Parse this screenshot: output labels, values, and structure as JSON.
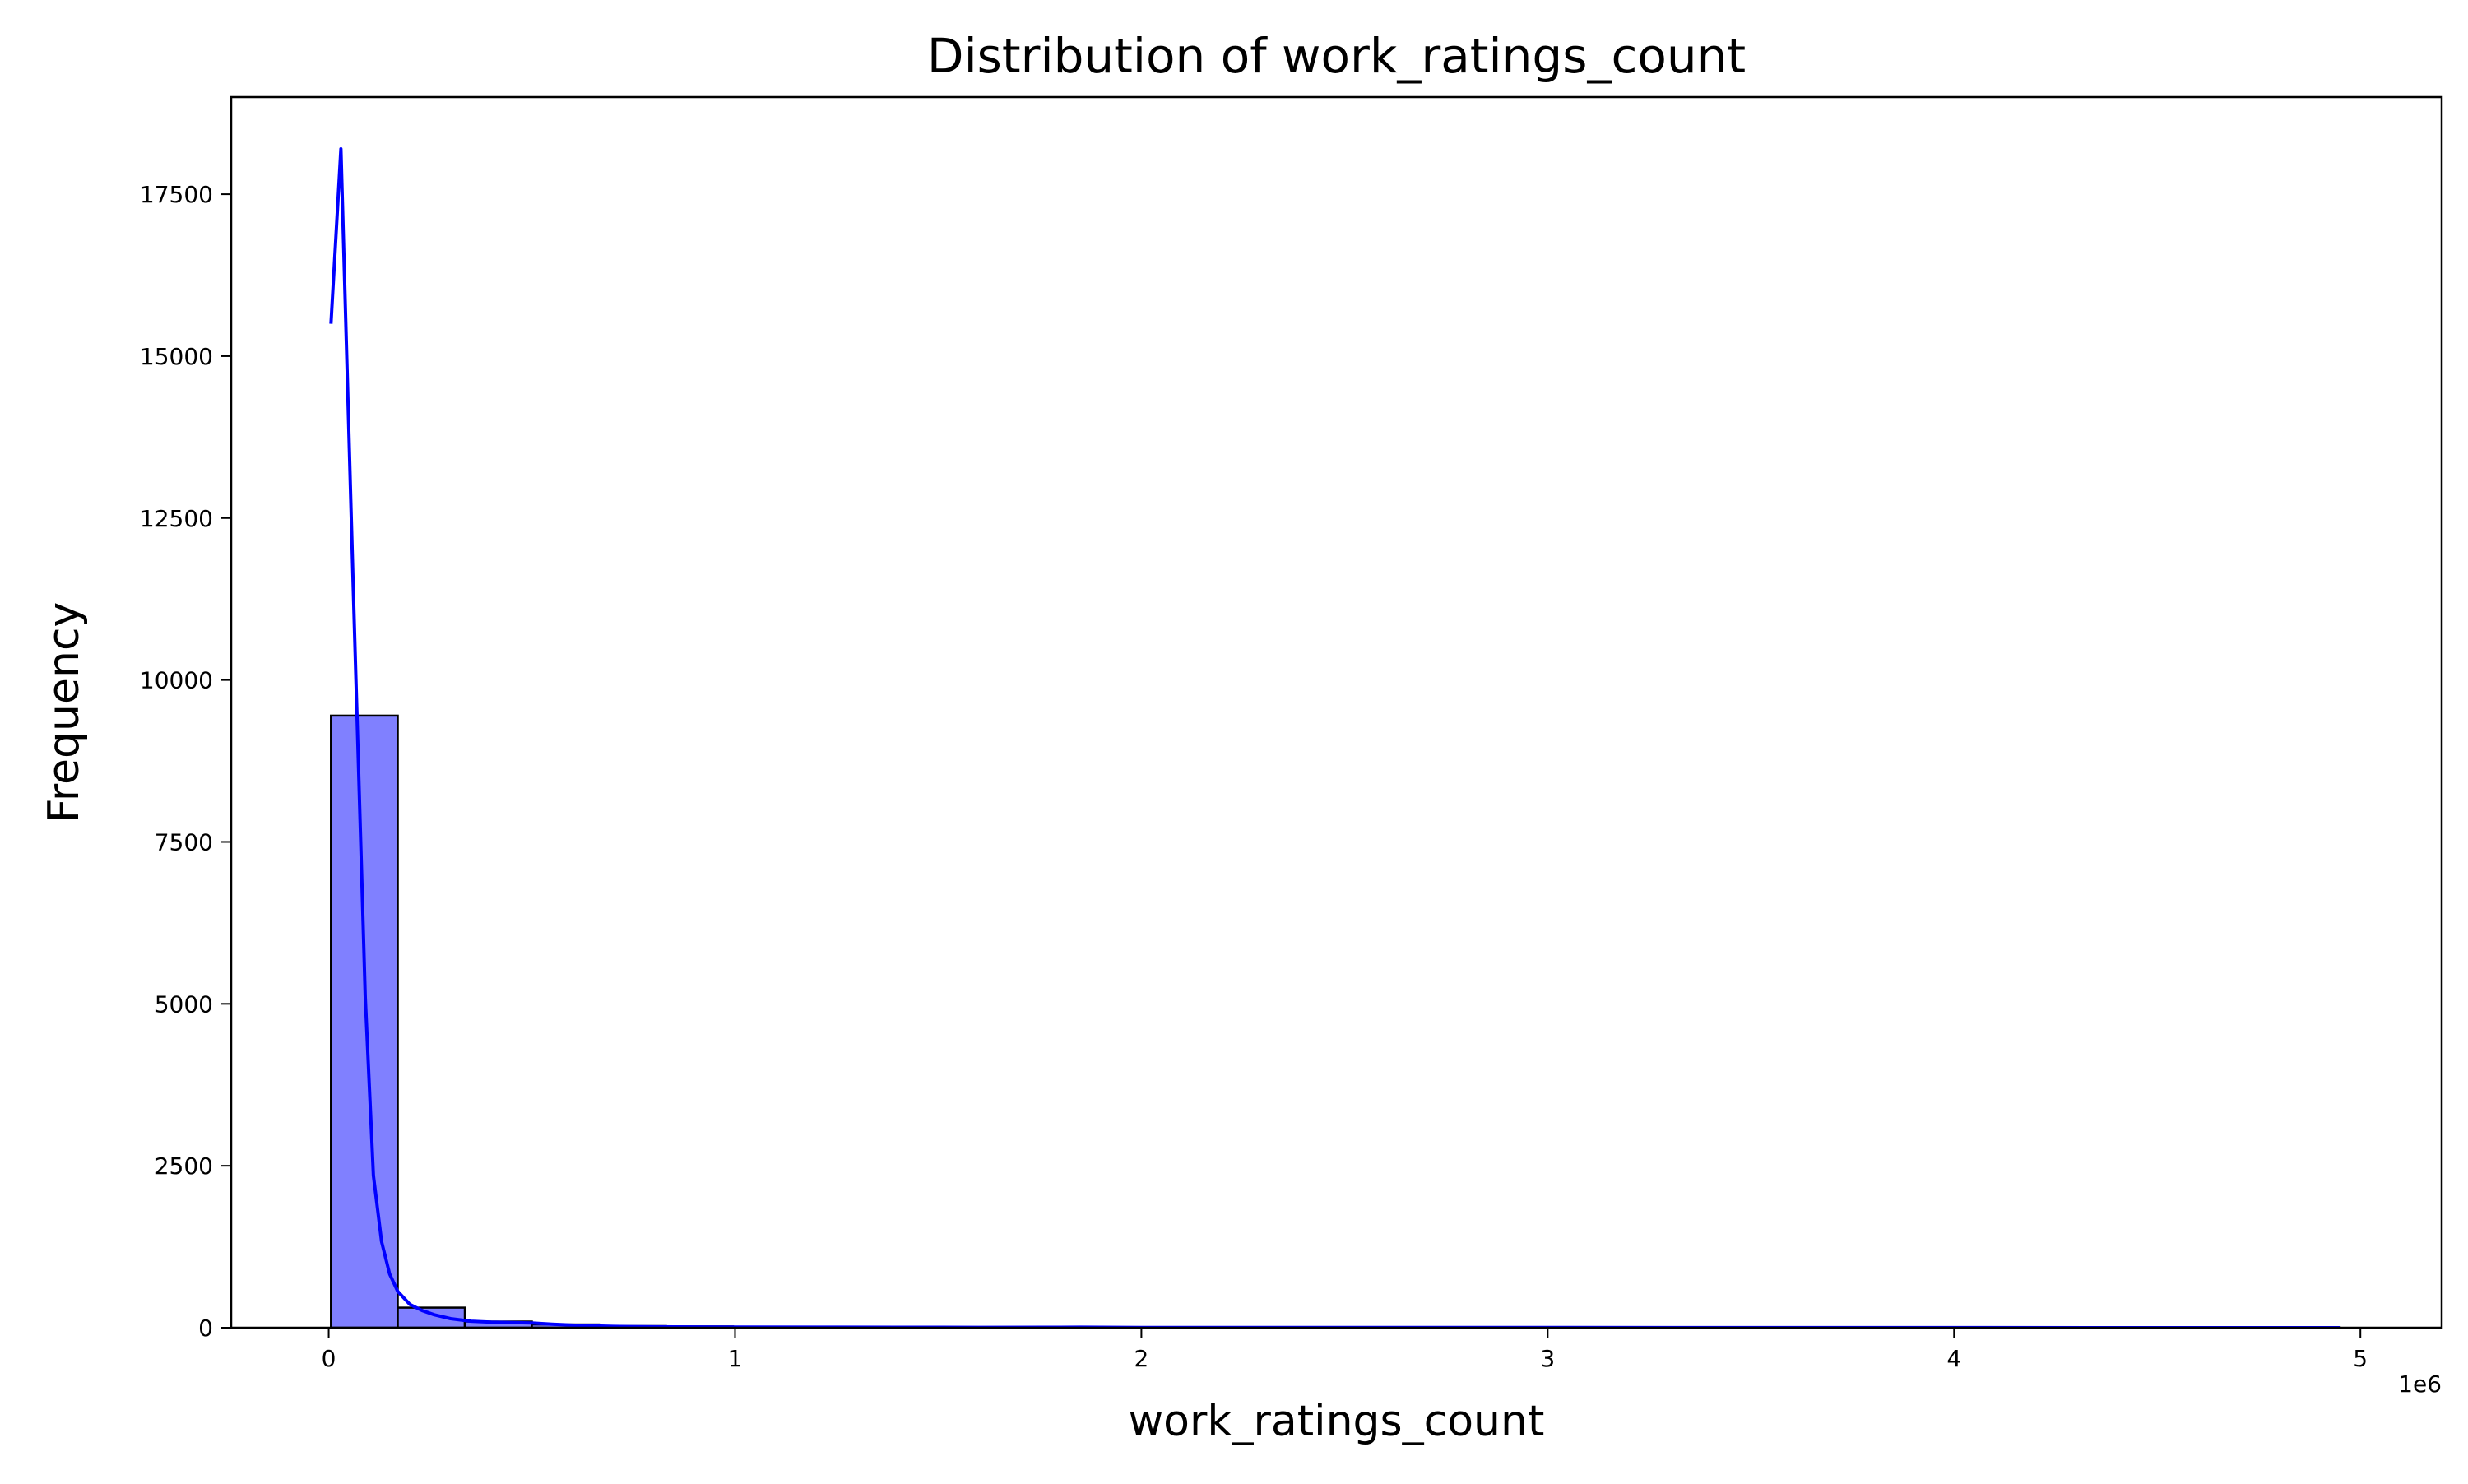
{
  "chart_data": {
    "type": "bar",
    "title": "Distribution of work_ratings_count",
    "xlabel": "work_ratings_count",
    "ylabel": "Frequency",
    "x_offset_label": "1e6",
    "x_scale_multiplier": 1000000,
    "xlim": [
      -240000,
      5200000
    ],
    "ylim": [
      0,
      19000
    ],
    "x_ticks": [
      0,
      1,
      2,
      3,
      4,
      5
    ],
    "y_ticks": [
      0,
      2500,
      5000,
      7500,
      10000,
      12500,
      15000,
      17500
    ],
    "grid": false,
    "legend": "none",
    "bar_color": "#8080ff",
    "bar_edge_color": "#000000",
    "kde_color": "#0000ff",
    "bins": [
      {
        "start": 5510,
        "end": 170000,
        "count": 9450
      },
      {
        "start": 170000,
        "end": 335000,
        "count": 310
      },
      {
        "start": 335000,
        "end": 500000,
        "count": 95
      },
      {
        "start": 500000,
        "end": 665000,
        "count": 50
      },
      {
        "start": 665000,
        "end": 830000,
        "count": 25
      },
      {
        "start": 830000,
        "end": 995000,
        "count": 20
      },
      {
        "start": 995000,
        "end": 1160000,
        "count": 12
      },
      {
        "start": 1160000,
        "end": 1325000,
        "count": 8
      },
      {
        "start": 1325000,
        "end": 1490000,
        "count": 6
      },
      {
        "start": 1490000,
        "end": 1655000,
        "count": 5
      },
      {
        "start": 1655000,
        "end": 1820000,
        "count": 4
      },
      {
        "start": 1820000,
        "end": 1985000,
        "count": 4
      },
      {
        "start": 1985000,
        "end": 2150000,
        "count": 3
      },
      {
        "start": 2150000,
        "end": 2315000,
        "count": 2
      },
      {
        "start": 2315000,
        "end": 2480000,
        "count": 1
      },
      {
        "start": 2480000,
        "end": 2645000,
        "count": 1
      },
      {
        "start": 2645000,
        "end": 2810000,
        "count": 1
      },
      {
        "start": 2810000,
        "end": 2975000,
        "count": 1
      },
      {
        "start": 2975000,
        "end": 3140000,
        "count": 1
      },
      {
        "start": 3140000,
        "end": 3305000,
        "count": 0
      },
      {
        "start": 3305000,
        "end": 3470000,
        "count": 1
      },
      {
        "start": 3470000,
        "end": 3635000,
        "count": 0
      },
      {
        "start": 3635000,
        "end": 3800000,
        "count": 1
      },
      {
        "start": 3800000,
        "end": 3965000,
        "count": 0
      },
      {
        "start": 3965000,
        "end": 4130000,
        "count": 1
      },
      {
        "start": 4130000,
        "end": 4295000,
        "count": 0
      },
      {
        "start": 4295000,
        "end": 4460000,
        "count": 0
      },
      {
        "start": 4460000,
        "end": 4625000,
        "count": 0
      },
      {
        "start": 4625000,
        "end": 4790000,
        "count": 0
      },
      {
        "start": 4790000,
        "end": 4950000,
        "count": 1
      }
    ],
    "kde": {
      "x": [
        5510,
        30000,
        60000,
        90000,
        110000,
        130000,
        150000,
        170000,
        200000,
        230000,
        260000,
        300000,
        350000,
        400000,
        450000,
        500000,
        550000,
        600000,
        650000,
        700000,
        800000,
        900000,
        1000000,
        1200000,
        1400000,
        1600000,
        1800000,
        1850000,
        1900000,
        2000000,
        2200000,
        2500000,
        3000000,
        3500000,
        4000000,
        4500000,
        4950000
      ],
      "y": [
        15500,
        18200,
        11500,
        5100,
        2350,
        1330,
        830,
        560,
        360,
        265,
        200,
        140,
        100,
        85,
        80,
        72,
        55,
        40,
        28,
        20,
        14,
        11,
        9,
        8,
        6,
        5,
        6,
        8,
        6,
        4,
        3,
        2,
        2,
        1,
        1,
        0,
        0
      ]
    }
  }
}
